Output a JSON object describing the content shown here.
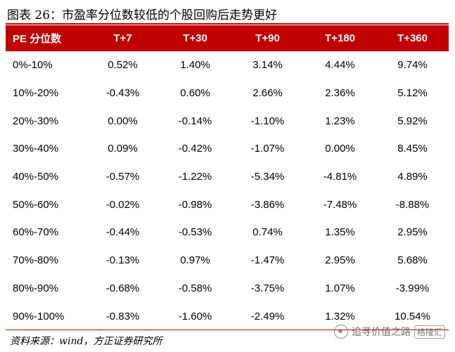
{
  "title": "图表 26：市盈率分位数较低的个股回购后走势更好",
  "table": {
    "headers": [
      "PE 分位数",
      "T+7",
      "T+30",
      "T+90",
      "T+180",
      "T+360"
    ],
    "rows": [
      [
        "0%-10%",
        "0.52%",
        "1.40%",
        "3.14%",
        "4.44%",
        "9.74%"
      ],
      [
        "10%-20%",
        "-0.43%",
        "0.60%",
        "2.66%",
        "2.36%",
        "5.12%"
      ],
      [
        "20%-30%",
        "0.00%",
        "-0.14%",
        "-1.10%",
        "1.23%",
        "5.92%"
      ],
      [
        "30%-40%",
        "0.09%",
        "-0.42%",
        "-1.07%",
        "0.00%",
        "8.45%"
      ],
      [
        "40%-50%",
        "-0.57%",
        "-1.22%",
        "-5.34%",
        "-4.81%",
        "4.89%"
      ],
      [
        "50%-60%",
        "-0.02%",
        "-0.98%",
        "-3.86%",
        "-7.48%",
        "-8.88%"
      ],
      [
        "60%-70%",
        "-0.44%",
        "-0.53%",
        "0.74%",
        "1.35%",
        "2.95%"
      ],
      [
        "70%-80%",
        "-0.13%",
        "0.97%",
        "-1.47%",
        "2.95%",
        "5.68%"
      ],
      [
        "80%-90%",
        "-0.68%",
        "-0.58%",
        "-3.75%",
        "1.07%",
        "-3.99%"
      ],
      [
        "90%-100%",
        "-0.83%",
        "-1.60%",
        "-2.49%",
        "1.32%",
        "10.54%"
      ]
    ]
  },
  "source": "资料来源：wind，方正证券研究所",
  "watermark": {
    "text": "追寻价值之路",
    "brand": "格隆汇"
  },
  "colors": {
    "header_bg": "#c00000",
    "rule": "#c00000"
  }
}
